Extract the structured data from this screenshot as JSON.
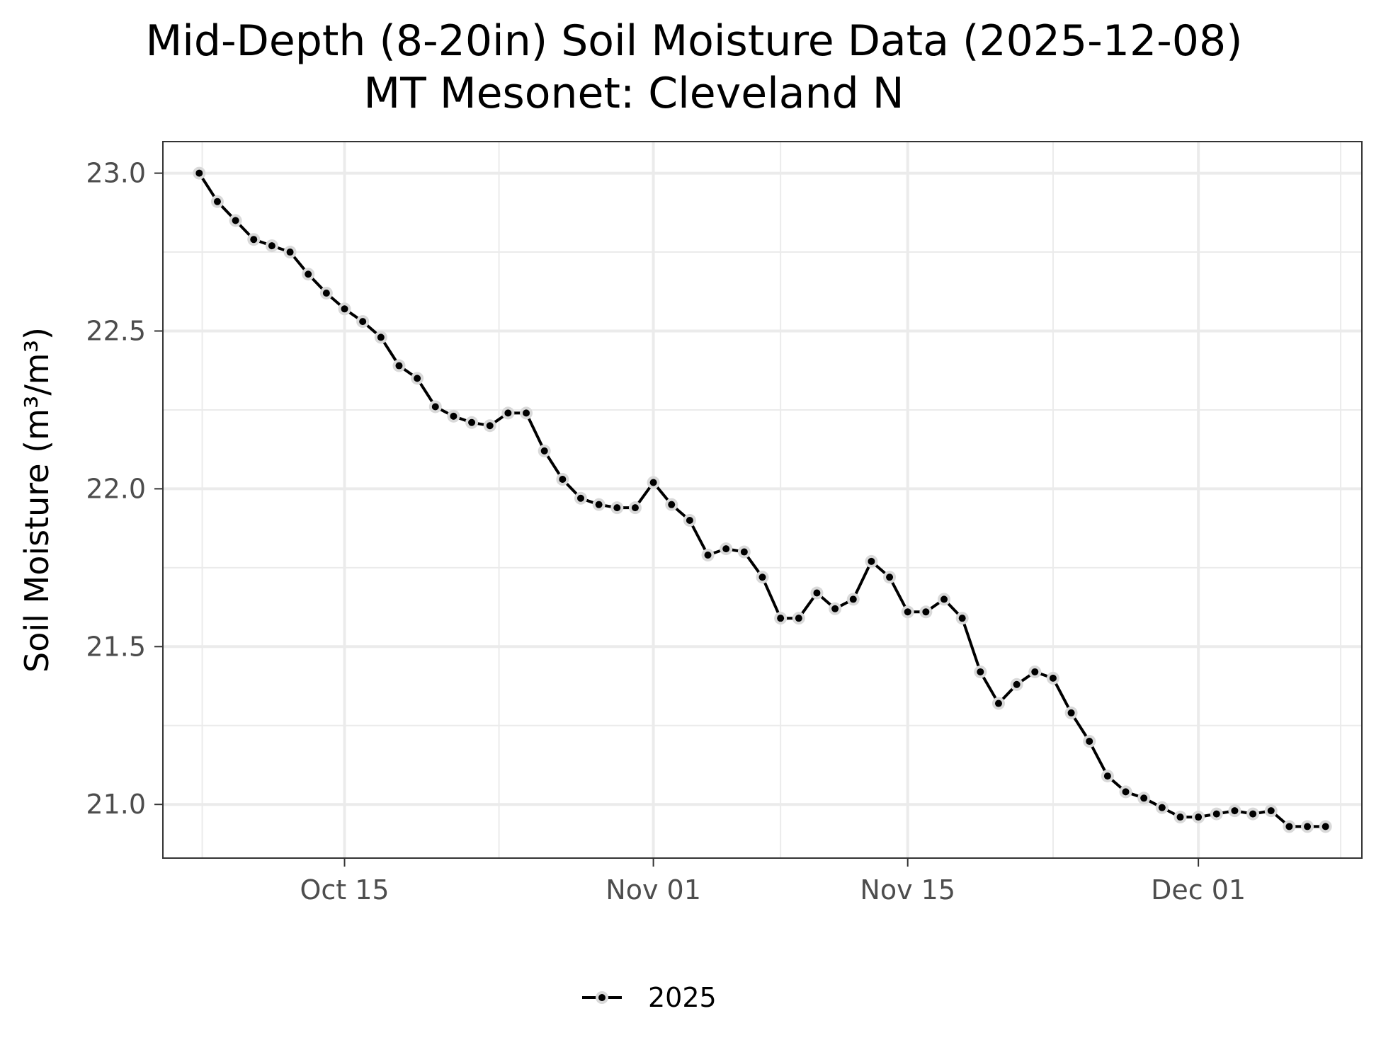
{
  "chart_data": {
    "type": "line",
    "title": "Mid-Depth (8-20in) Soil Moisture Data (2025-12-08)",
    "subtitle": "MT Mesonet: Cleveland N",
    "ylabel": "Soil Moisture (m³/m³)",
    "xlabel": "",
    "xlim": [
      "2025-10-05",
      "2025-12-10"
    ],
    "ylim": [
      20.83,
      23.1
    ],
    "x_ticks": [
      {
        "date": "2025-10-15",
        "label": "Oct 15"
      },
      {
        "date": "2025-11-01",
        "label": "Nov 01"
      },
      {
        "date": "2025-11-15",
        "label": "Nov 15"
      },
      {
        "date": "2025-12-01",
        "label": "Dec 01"
      }
    ],
    "y_ticks": [
      {
        "value": 21.0,
        "label": "21.0"
      },
      {
        "value": 21.5,
        "label": "21.5"
      },
      {
        "value": 22.0,
        "label": "22.0"
      },
      {
        "value": 22.5,
        "label": "22.5"
      },
      {
        "value": 23.0,
        "label": "23.0"
      }
    ],
    "grid": true,
    "legend_position": "bottom",
    "series": [
      {
        "name": "2025",
        "color": "#000000",
        "marker_halo_color": "#d9d9d9",
        "x": [
          "2025-10-07",
          "2025-10-08",
          "2025-10-09",
          "2025-10-10",
          "2025-10-11",
          "2025-10-12",
          "2025-10-13",
          "2025-10-14",
          "2025-10-15",
          "2025-10-16",
          "2025-10-17",
          "2025-10-18",
          "2025-10-19",
          "2025-10-20",
          "2025-10-21",
          "2025-10-22",
          "2025-10-23",
          "2025-10-24",
          "2025-10-25",
          "2025-10-26",
          "2025-10-27",
          "2025-10-28",
          "2025-10-29",
          "2025-10-30",
          "2025-10-31",
          "2025-11-01",
          "2025-11-02",
          "2025-11-03",
          "2025-11-04",
          "2025-11-05",
          "2025-11-06",
          "2025-11-07",
          "2025-11-08",
          "2025-11-09",
          "2025-11-10",
          "2025-11-11",
          "2025-11-12",
          "2025-11-13",
          "2025-11-14",
          "2025-11-15",
          "2025-11-16",
          "2025-11-17",
          "2025-11-18",
          "2025-11-19",
          "2025-11-20",
          "2025-11-21",
          "2025-11-22",
          "2025-11-23",
          "2025-11-24",
          "2025-11-25",
          "2025-11-26",
          "2025-11-27",
          "2025-11-28",
          "2025-11-29",
          "2025-11-30",
          "2025-12-01",
          "2025-12-02",
          "2025-12-03",
          "2025-12-04",
          "2025-12-05",
          "2025-12-06",
          "2025-12-07",
          "2025-12-08"
        ],
        "values": [
          23.0,
          22.91,
          22.85,
          22.79,
          22.77,
          22.75,
          22.68,
          22.62,
          22.57,
          22.53,
          22.48,
          22.39,
          22.35,
          22.26,
          22.23,
          22.21,
          22.2,
          22.24,
          22.24,
          22.12,
          22.03,
          21.97,
          21.95,
          21.94,
          21.94,
          22.02,
          21.95,
          21.9,
          21.79,
          21.81,
          21.8,
          21.72,
          21.59,
          21.59,
          21.67,
          21.62,
          21.65,
          21.77,
          21.72,
          21.61,
          21.61,
          21.65,
          21.59,
          21.42,
          21.32,
          21.38,
          21.42,
          21.4,
          21.29,
          21.2,
          21.09,
          21.04,
          21.02,
          20.99,
          20.96,
          20.96,
          20.97,
          20.98,
          20.97,
          20.98,
          20.93,
          20.93,
          20.93
        ]
      }
    ]
  }
}
